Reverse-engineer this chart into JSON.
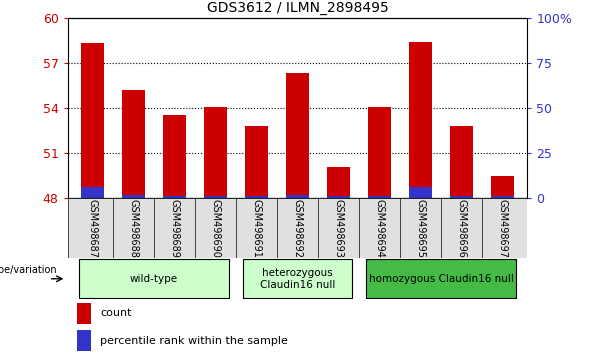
{
  "title": "GDS3612 / ILMN_2898495",
  "samples": [
    "GSM498687",
    "GSM498688",
    "GSM498689",
    "GSM498690",
    "GSM498691",
    "GSM498692",
    "GSM498693",
    "GSM498694",
    "GSM498695",
    "GSM498696",
    "GSM498697"
  ],
  "counts": [
    58.3,
    55.2,
    53.5,
    54.05,
    52.8,
    56.3,
    50.1,
    54.05,
    58.4,
    52.8,
    49.5
  ],
  "percentile_ranks": [
    6,
    2,
    1,
    1,
    1,
    2,
    1,
    1,
    6,
    1,
    1
  ],
  "ymin": 48,
  "ymax": 60,
  "yticks": [
    48,
    51,
    54,
    57,
    60
  ],
  "right_yticks": [
    0,
    25,
    50,
    75,
    100
  ],
  "right_yticklabels": [
    "0",
    "25",
    "50",
    "75",
    "100%"
  ],
  "bar_color": "#cc0000",
  "percentile_color": "#3333cc",
  "bar_width": 0.55,
  "group_starts": [
    0,
    4,
    7
  ],
  "group_ends": [
    3,
    6,
    10
  ],
  "group_labels": [
    "wild-type",
    "heterozygous\nClaudin16 null",
    "homozygous Claudin16 null"
  ],
  "group_colors": [
    "#ccffcc",
    "#ccffcc",
    "#44bb44"
  ],
  "genotype_label": "genotype/variation",
  "legend_count_label": "count",
  "legend_percentile_label": "percentile rank within the sample",
  "tick_color_left": "#cc0000",
  "tick_color_right": "#3333cc",
  "background_color": "#ffffff",
  "sample_box_color": "#cccccc",
  "sample_box_edge": "#888888"
}
